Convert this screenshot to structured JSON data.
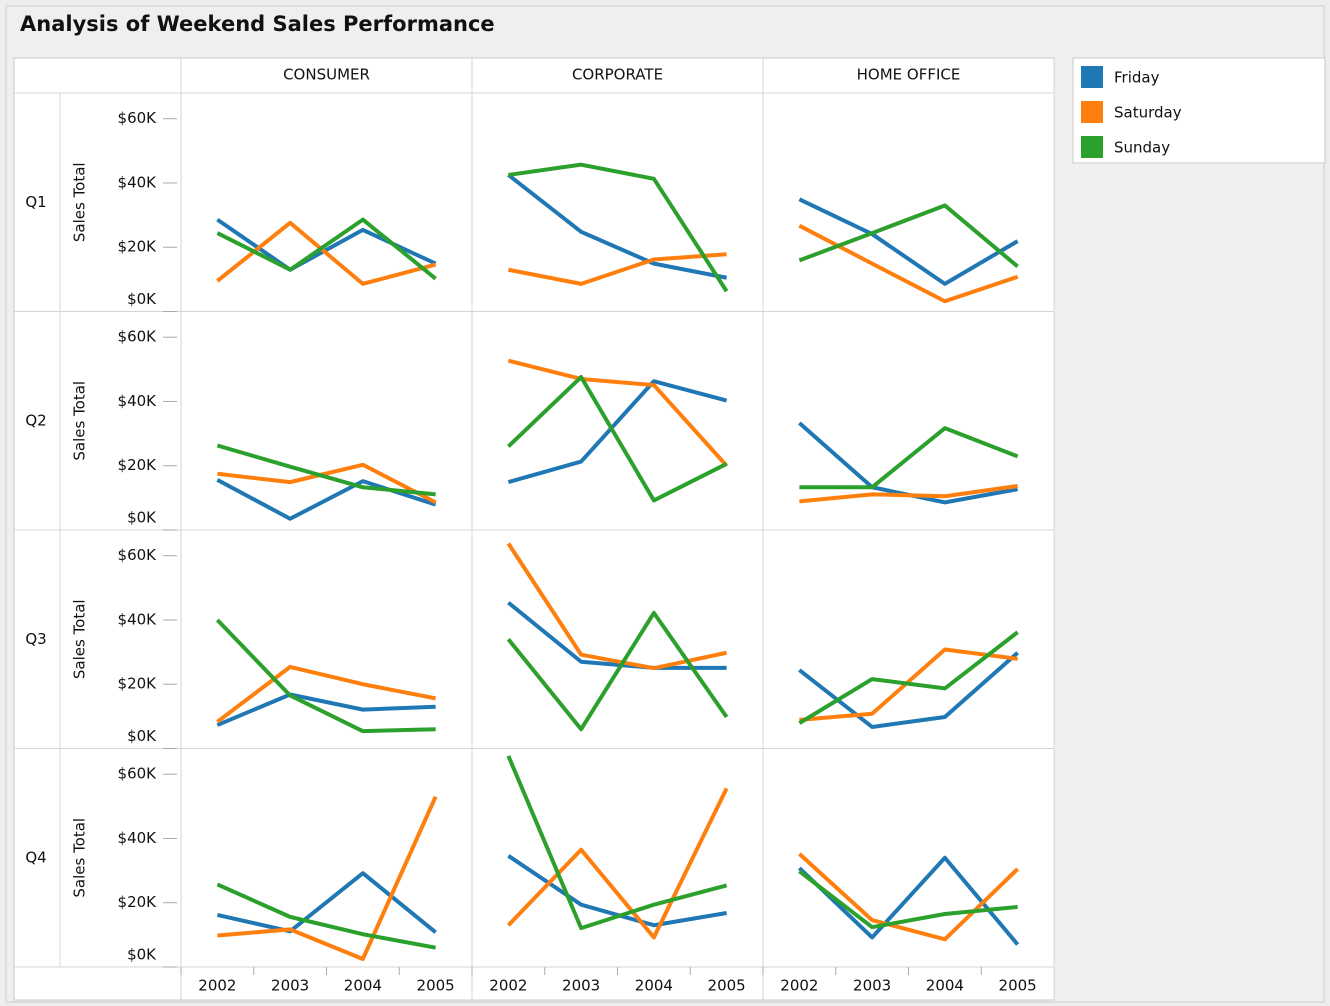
{
  "chart_data": {
    "type": "line",
    "title": "Analysis of Weekend Sales Performance",
    "columns": [
      "CONSUMER",
      "CORPORATE",
      "HOME OFFICE"
    ],
    "rows": [
      "Q1",
      "Q2",
      "Q3",
      "Q4"
    ],
    "y_label": "Sales Total",
    "categories": [
      "2002",
      "2003",
      "2004",
      "2005"
    ],
    "ylim": [
      0,
      68000
    ],
    "yticks": [
      {
        "value": 0,
        "label": "$0K"
      },
      {
        "value": 20000,
        "label": "$20K"
      },
      {
        "value": 40000,
        "label": "$40K"
      },
      {
        "value": 60000,
        "label": "$60K"
      }
    ],
    "series": [
      {
        "name": "Friday",
        "color": "#1f77b4"
      },
      {
        "name": "Saturday",
        "color": "#ff7f0e"
      },
      {
        "name": "Sunday",
        "color": "#2ca02c"
      }
    ],
    "panels": [
      [
        [
          [
            28600,
            13000,
            25400,
            14900
          ],
          [
            9500,
            27600,
            8600,
            14600
          ],
          [
            24400,
            13000,
            28600,
            10200
          ]
        ],
        [
          [
            42500,
            24800,
            14900,
            10500
          ],
          [
            13000,
            8600,
            16200,
            17800
          ],
          [
            42500,
            45700,
            41300,
            6300
          ]
        ],
        [
          [
            34900,
            24100,
            8600,
            21900
          ],
          [
            26700,
            14900,
            3200,
            10800
          ],
          [
            15900,
            24400,
            33000,
            14000
          ]
        ]
      ],
      [
        [
          [
            15600,
            3500,
            15200,
            7900
          ],
          [
            17500,
            14900,
            20300,
            8600
          ],
          [
            26300,
            19700,
            13300,
            11100
          ]
        ],
        [
          [
            14900,
            21300,
            46300,
            40300
          ],
          [
            52700,
            47000,
            45100,
            20000
          ],
          [
            26000,
            47600,
            9200,
            20600
          ]
        ],
        [
          [
            33300,
            13300,
            8600,
            12700
          ],
          [
            8900,
            11100,
            10500,
            13700
          ],
          [
            13300,
            13300,
            31700,
            22900
          ]
        ]
      ],
      [
        [
          [
            7300,
            16800,
            12100,
            13000
          ],
          [
            8300,
            25400,
            20000,
            15600
          ],
          [
            40000,
            16500,
            5400,
            6000
          ]
        ],
        [
          [
            45400,
            27000,
            25100,
            25100
          ],
          [
            63800,
            29200,
            25000,
            29800
          ],
          [
            34000,
            6000,
            42200,
            9800
          ]
        ],
        [
          [
            24400,
            6700,
            9800,
            29800
          ],
          [
            8900,
            10800,
            30800,
            27900
          ],
          [
            7900,
            21600,
            18700,
            36200
          ]
        ]
      ],
      [
        [
          [
            16200,
            11100,
            29200,
            10800
          ],
          [
            9800,
            11700,
            2500,
            53000
          ],
          [
            25700,
            15600,
            10200,
            6000
          ]
        ],
        [
          [
            34600,
            19400,
            13000,
            16800
          ],
          [
            13000,
            36500,
            9200,
            55600
          ],
          [
            65700,
            12100,
            19400,
            25400
          ]
        ],
        [
          [
            30800,
            9200,
            34000,
            7000
          ],
          [
            35200,
            14600,
            8600,
            30500
          ],
          [
            29800,
            12400,
            16500,
            18700
          ]
        ]
      ]
    ]
  }
}
